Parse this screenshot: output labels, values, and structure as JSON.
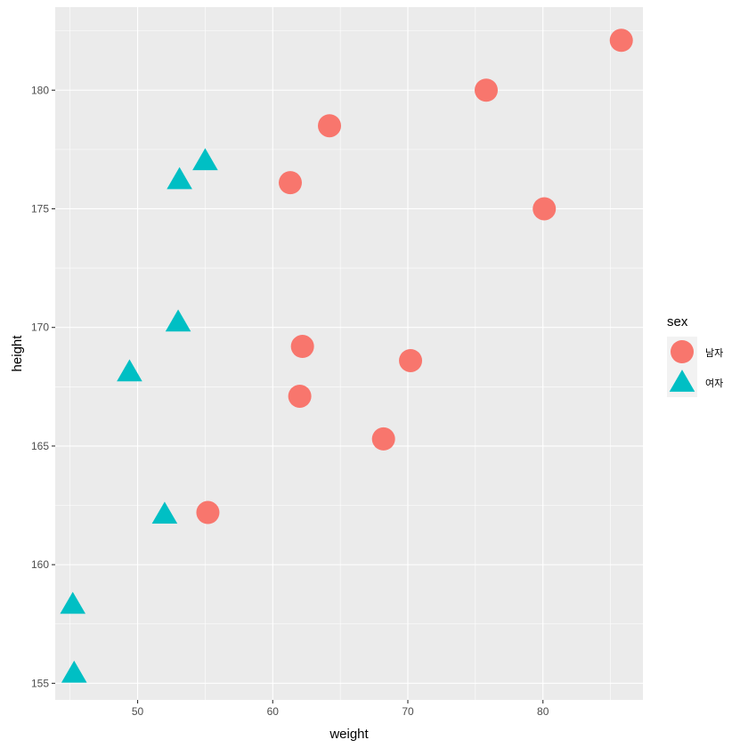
{
  "chart_data": {
    "type": "scatter",
    "title": "",
    "xlabel": "weight",
    "ylabel": "height",
    "xlim": [
      43.9,
      87.4
    ],
    "ylim": [
      154.3,
      183.5
    ],
    "xticks": [
      50,
      60,
      70,
      80
    ],
    "yticks": [
      155,
      160,
      165,
      170,
      175,
      180
    ],
    "grid": true,
    "legend_title": "sex",
    "legend_position": "right",
    "series": [
      {
        "name": "남자",
        "shape": "circle",
        "color": "#F8766D",
        "points": [
          {
            "x": 85.8,
            "y": 182.1
          },
          {
            "x": 75.8,
            "y": 180.0
          },
          {
            "x": 64.2,
            "y": 178.5
          },
          {
            "x": 61.3,
            "y": 176.1
          },
          {
            "x": 80.1,
            "y": 175.0
          },
          {
            "x": 62.2,
            "y": 169.2
          },
          {
            "x": 70.2,
            "y": 168.6
          },
          {
            "x": 62.0,
            "y": 167.1
          },
          {
            "x": 68.2,
            "y": 165.3
          },
          {
            "x": 55.2,
            "y": 162.2
          }
        ]
      },
      {
        "name": "여자",
        "shape": "triangle",
        "color": "#00BFC4",
        "points": [
          {
            "x": 55.0,
            "y": 177.0
          },
          {
            "x": 53.1,
            "y": 176.2
          },
          {
            "x": 53.0,
            "y": 170.2
          },
          {
            "x": 49.4,
            "y": 168.1
          },
          {
            "x": 52.0,
            "y": 162.1
          },
          {
            "x": 45.2,
            "y": 158.3
          },
          {
            "x": 45.3,
            "y": 155.4
          }
        ]
      }
    ]
  }
}
